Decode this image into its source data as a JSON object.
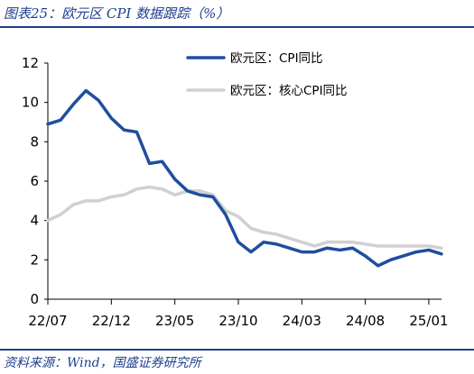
{
  "header": {
    "title": "图表25：欧元区 CPI 数据跟踪（%）"
  },
  "footer": {
    "source": "资料来源：Wind，国盛证券研究所"
  },
  "chart_data": {
    "type": "line",
    "title": "",
    "xlabel": "",
    "ylabel": "",
    "ylim": [
      0,
      12
    ],
    "yticks": [
      "0",
      "2",
      "4",
      "6",
      "8",
      "10",
      "12"
    ],
    "xticks": [
      "22/07",
      "22/12",
      "23/05",
      "23/10",
      "24/03",
      "24/08",
      "25/01"
    ],
    "grid": false,
    "legend_position": "top-center",
    "x": [
      "2022-07",
      "2022-08",
      "2022-09",
      "2022-10",
      "2022-11",
      "2022-12",
      "2023-01",
      "2023-02",
      "2023-03",
      "2023-04",
      "2023-05",
      "2023-06",
      "2023-07",
      "2023-08",
      "2023-09",
      "2023-10",
      "2023-11",
      "2023-12",
      "2024-01",
      "2024-02",
      "2024-03",
      "2024-04",
      "2024-05",
      "2024-06",
      "2024-07",
      "2024-08",
      "2024-09",
      "2024-10",
      "2024-11",
      "2024-12",
      "2025-01",
      "2025-02"
    ],
    "series": [
      {
        "name": "欧元区：CPI同比",
        "color": "#1f4e9e",
        "values": [
          8.9,
          9.1,
          9.9,
          10.6,
          10.1,
          9.2,
          8.6,
          8.5,
          6.9,
          7.0,
          6.1,
          5.5,
          5.3,
          5.2,
          4.3,
          2.9,
          2.4,
          2.9,
          2.8,
          2.6,
          2.4,
          2.4,
          2.6,
          2.5,
          2.6,
          2.2,
          1.7,
          2.0,
          2.2,
          2.4,
          2.5,
          2.3
        ]
      },
      {
        "name": "欧元区：核心CPI同比",
        "color": "#d0d0d0",
        "values": [
          4.0,
          4.3,
          4.8,
          5.0,
          5.0,
          5.2,
          5.3,
          5.6,
          5.7,
          5.6,
          5.3,
          5.5,
          5.5,
          5.3,
          4.5,
          4.2,
          3.6,
          3.4,
          3.3,
          3.1,
          2.9,
          2.7,
          2.9,
          2.9,
          2.9,
          2.8,
          2.7,
          2.7,
          2.7,
          2.7,
          2.7,
          2.6
        ]
      }
    ]
  }
}
